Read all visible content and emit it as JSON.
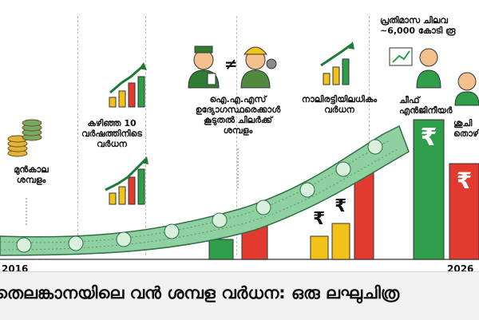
{
  "labels": {
    "base_salary": "മുൻകാല\nശമ്പളം",
    "ten_year_growth": "കഴിഞ്ഞ 10\nവർഷത്തിനിടെ\nവർധന",
    "ias_compare": "ഐ.എ.എസ്\nഉദ്യോഗസ്ഥരെക്കാൾ\nകൂടുതൽ ചിലർക്ക്\nശമ്പളം",
    "fourfold": "നാലിരട്ടിയിലധികം\nവർധന",
    "monthly_expense": "പ്രതിമാസ ചിലവ\n~6,000 കോടി രൂ",
    "chief_engineer": "ചീഫ്\nഎൻജിനീയർ",
    "salary_word": "ശുചി\nതൊഴി"
  },
  "years": {
    "start": "2016",
    "end": "2026"
  },
  "title": "തെലങ്കാനയിലെ വൻ ശമ്പള വർധന: ഒരു ലഘുചിത്ര",
  "symbols": {
    "rupee": "₹",
    "not_equal": "≠"
  },
  "colors": {
    "green": "#2e9e48",
    "green_dark": "#1f7a35",
    "red": "#e23a2e",
    "yellow": "#f2c21a",
    "money": "#8fd0a0",
    "money_dark": "#4f9a67",
    "gold": "#d9a62b"
  }
}
